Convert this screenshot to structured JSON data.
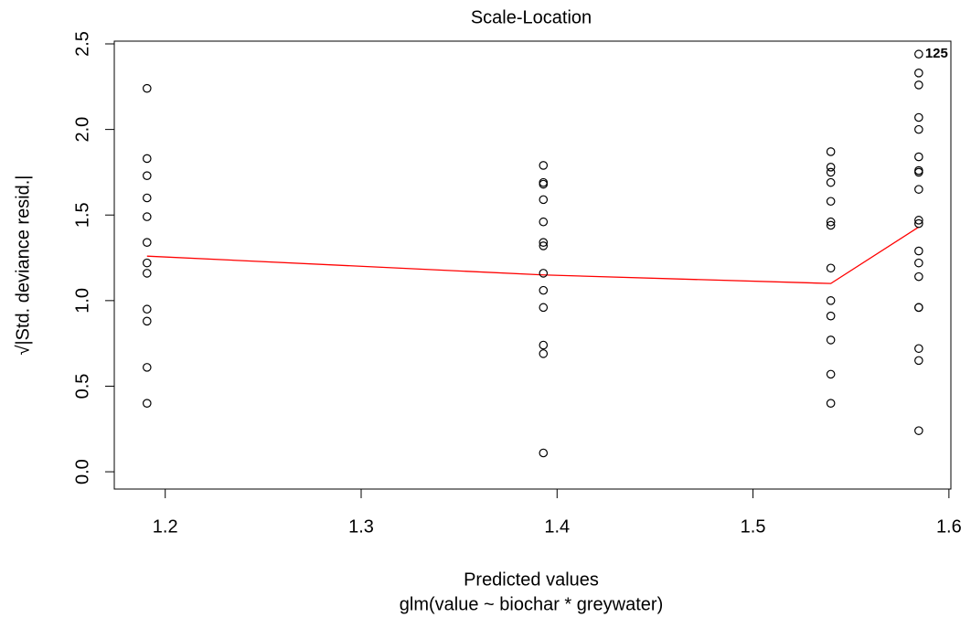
{
  "chart_data": {
    "type": "scatter",
    "title": "Scale-Location",
    "x_label": "Predicted values",
    "subtitle": "glm(value ~ biochar * greywater)",
    "y_label": "√|Std. deviance resid.|",
    "x": [
      1.1907,
      1.1907,
      1.1907,
      1.1907,
      1.1907,
      1.1907,
      1.1907,
      1.1907,
      1.1907,
      1.1907,
      1.1907,
      1.1907,
      1.393,
      1.393,
      1.393,
      1.393,
      1.393,
      1.393,
      1.393,
      1.393,
      1.393,
      1.393,
      1.393,
      1.393,
      1.393,
      1.5397,
      1.5397,
      1.5397,
      1.5397,
      1.5397,
      1.5397,
      1.5397,
      1.5397,
      1.5397,
      1.5397,
      1.5397,
      1.5397,
      1.5397,
      1.5846,
      1.5846,
      1.5846,
      1.5846,
      1.5846,
      1.5846,
      1.5846,
      1.5846,
      1.5846,
      1.5846,
      1.5846,
      1.5846,
      1.5846,
      1.5846,
      1.5846,
      1.5846,
      1.5846,
      1.5846,
      1.5846
    ],
    "y": [
      2.24,
      1.83,
      1.73,
      1.6,
      1.49,
      1.34,
      1.22,
      1.16,
      0.95,
      0.88,
      0.61,
      0.4,
      1.79,
      1.69,
      1.68,
      1.59,
      1.46,
      1.34,
      1.32,
      1.16,
      1.06,
      0.96,
      0.74,
      0.69,
      0.11,
      1.87,
      1.78,
      1.75,
      1.69,
      1.58,
      1.46,
      1.44,
      1.19,
      1.0,
      0.91,
      0.77,
      0.57,
      0.4,
      2.44,
      2.33,
      2.26,
      2.07,
      2.0,
      1.84,
      1.76,
      1.75,
      1.65,
      1.47,
      1.45,
      1.29,
      1.22,
      1.14,
      0.96,
      0.96,
      0.72,
      0.65,
      0.24
    ],
    "color": "#000000",
    "smooth": {
      "x": [
        1.1907,
        1.393,
        1.5397,
        1.5846
      ],
      "y": [
        1.26,
        1.15,
        1.1,
        1.43
      ],
      "color": "#ff0000"
    },
    "annotations": [
      {
        "text": "125",
        "x": 1.5846,
        "y": 2.44
      }
    ],
    "xlim": [
      1.174,
      1.601
    ],
    "xticks": [
      1.2,
      1.3,
      1.4,
      1.5,
      1.6
    ],
    "ylim": [
      -0.101,
      2.516
    ],
    "yticks": [
      {
        "value": 0,
        "label": "0.0"
      },
      0.5,
      {
        "value": 1,
        "label": "1.0"
      },
      1.5,
      {
        "value": 2,
        "label": "2.0"
      },
      2.5
    ]
  }
}
